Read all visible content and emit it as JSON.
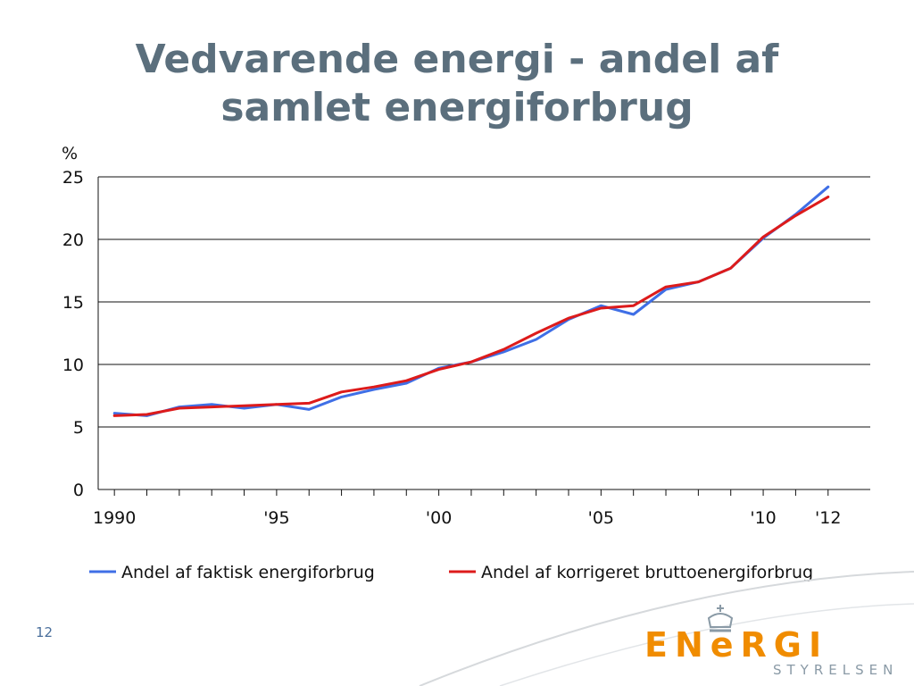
{
  "slide": {
    "title_line1": "Vedvarende energi - andel af",
    "title_line2": "samlet energiforbrug",
    "page_number": "12"
  },
  "logo": {
    "word": "ENeRGI",
    "sub": "STYRELSEN",
    "color": "#f08c00"
  },
  "chart_data": {
    "type": "line",
    "ylabel": "%",
    "ylim": [
      0,
      25
    ],
    "yticks": [
      0,
      5,
      10,
      15,
      20,
      25
    ],
    "x": [
      1990,
      1991,
      1992,
      1993,
      1994,
      1995,
      1996,
      1997,
      1998,
      1999,
      2000,
      2001,
      2002,
      2003,
      2004,
      2005,
      2006,
      2007,
      2008,
      2009,
      2010,
      2011,
      2012
    ],
    "xtick_labels": [
      {
        "x": 1990,
        "label": "1990"
      },
      {
        "x": 1995,
        "label": "'95"
      },
      {
        "x": 2000,
        "label": "'00"
      },
      {
        "x": 2005,
        "label": "'05"
      },
      {
        "x": 2010,
        "label": "'10"
      },
      {
        "x": 2012,
        "label": "'12"
      }
    ],
    "grid": "horizontal",
    "legend": "bottom",
    "series": [
      {
        "name": "Andel af faktisk energiforbrug",
        "color": "#3f6fe6",
        "values": [
          6.1,
          5.9,
          6.6,
          6.8,
          6.5,
          6.8,
          6.4,
          7.4,
          8.0,
          8.5,
          9.7,
          10.2,
          11.0,
          12.0,
          13.6,
          14.7,
          14.0,
          16.0,
          16.6,
          17.7,
          20.1,
          22.0,
          24.2
        ]
      },
      {
        "name": "Andel af korrigeret bruttoenergiforbrug",
        "color": "#dd1b1b",
        "values": [
          5.9,
          6.0,
          6.5,
          6.6,
          6.7,
          6.8,
          6.9,
          7.8,
          8.2,
          8.7,
          9.6,
          10.2,
          11.2,
          12.5,
          13.7,
          14.5,
          14.7,
          16.2,
          16.6,
          17.7,
          20.2,
          21.9,
          23.4
        ]
      }
    ]
  }
}
